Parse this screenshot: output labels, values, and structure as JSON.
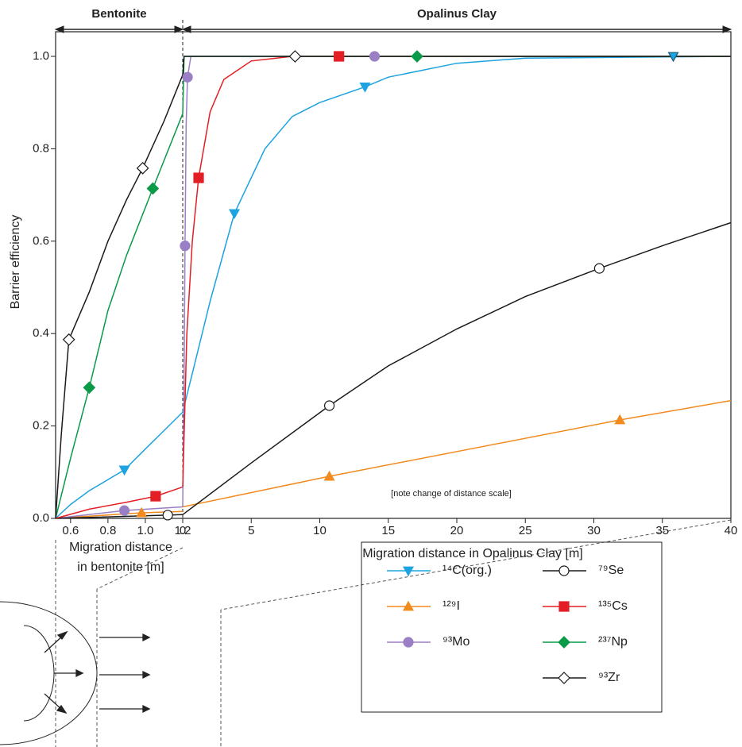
{
  "chart_data": [
    {
      "type": "line",
      "title": "Bentonite",
      "ylabel": "Barrier efficiency",
      "xlabel": [
        "Migration distance",
        "in bentonite [m]"
      ],
      "xlim": [
        0.52,
        1.2
      ],
      "xticks": [
        0.6,
        0.8,
        {
          "value": 1,
          "label": "1.0"
        },
        1.2
      ],
      "ylim": [
        0,
        1
      ],
      "yticks": [
        {
          "value": 0,
          "label": "0.0"
        },
        0.2,
        0.4,
        0.6,
        0.8,
        {
          "value": 1,
          "label": "1.0"
        }
      ],
      "series": [
        {
          "color": "#1ca3e0",
          "marker": "triangle-down",
          "marker_fill": "#1ca3e0",
          "x": [
            0.52,
            0.6,
            0.7,
            0.888,
            1.0,
            1.1,
            1.2
          ],
          "values": [
            0,
            0.03,
            0.06,
            0.105,
            0.15,
            0.19,
            0.23
          ],
          "markers": {
            "x": [
              0.888
            ],
            "values": [
              0.105
            ]
          }
        },
        {
          "color": "#f28a1e",
          "marker": "triangle-up",
          "marker_fill": "#f28a1e",
          "x": [
            0.52,
            0.98,
            1.2
          ],
          "values": [
            0,
            0.012,
            0.015
          ],
          "markers": {
            "x": [
              0.98
            ],
            "values": [
              0.012
            ]
          }
        },
        {
          "color": "#9b7fc4",
          "marker": "circle",
          "marker_fill": "#9b7fc4",
          "x": [
            0.52,
            0.888,
            1.2
          ],
          "values": [
            0,
            0.017,
            0.025
          ],
          "markers": {
            "x": [
              0.888
            ],
            "values": [
              0.017
            ]
          }
        },
        {
          "color": "#1a1a1a",
          "marker": "circle",
          "marker_fill": "#ffffff",
          "x": [
            0.52,
            1.12,
            1.2
          ],
          "values": [
            0,
            0.007,
            0.008
          ],
          "markers": {
            "x": [
              1.12
            ],
            "values": [
              0.007
            ]
          }
        },
        {
          "color": "#e31e24",
          "marker": "square",
          "marker_fill": "#e31e24",
          "x": [
            0.52,
            0.7,
            0.9,
            1.055,
            1.2
          ],
          "values": [
            0,
            0.02,
            0.035,
            0.048,
            0.068
          ],
          "markers": {
            "x": [
              1.055
            ],
            "values": [
              0.048
            ]
          }
        },
        {
          "color": "#0a9a48",
          "marker": "diamond",
          "marker_fill": "#0a9a48",
          "x": [
            0.52,
            0.6,
            0.7,
            0.8,
            0.9,
            1.04,
            1.2
          ],
          "values": [
            0,
            0.13,
            0.283,
            0.45,
            0.57,
            0.714,
            0.876
          ],
          "markers": {
            "x": [
              0.7,
              1.04
            ],
            "values": [
              0.283,
              0.714
            ]
          }
        },
        {
          "color": "#1a1a1a",
          "marker": "diamond",
          "marker_fill": "#ffffff",
          "x": [
            0.52,
            0.55,
            0.591,
            0.7,
            0.8,
            0.9,
            0.986,
            1.1,
            1.2
          ],
          "values": [
            0,
            0.18,
            0.387,
            0.49,
            0.6,
            0.69,
            0.758,
            0.86,
            0.96
          ],
          "markers": {
            "x": [
              0.591,
              0.986
            ],
            "values": [
              0.387,
              0.758
            ]
          }
        }
      ]
    },
    {
      "type": "line",
      "title": "Opalinus Clay",
      "xlabel": "Migration distance in Opalinus Clay [m]",
      "annotation": "[note change of distance scale]",
      "xlim": [
        0,
        40
      ],
      "xticks": [
        0,
        5,
        10,
        15,
        20,
        25,
        30,
        35,
        40
      ],
      "ylim": [
        0,
        1
      ],
      "series": [
        {
          "name": "¹⁴C(org.)",
          "color": "#1ca3e0",
          "marker": "triangle-down",
          "marker_fill": "#1ca3e0",
          "x": [
            0,
            1,
            2,
            3.77,
            6,
            8,
            10,
            13.3,
            15,
            20,
            25,
            40
          ],
          "values": [
            0.23,
            0.35,
            0.47,
            0.66,
            0.8,
            0.87,
            0.9,
            0.934,
            0.955,
            0.985,
            0.996,
            1.0
          ],
          "markers": {
            "x": [
              3.77,
              13.3,
              35.8
            ],
            "values": [
              0.66,
              0.934,
              1.0
            ]
          }
        },
        {
          "name": "¹²⁹I",
          "color": "#f28a1e",
          "marker": "triangle-up",
          "marker_fill": "#f28a1e",
          "x": [
            0,
            10.7,
            31.9,
            40
          ],
          "values": [
            0.025,
            0.091,
            0.213,
            0.255
          ],
          "markers": {
            "x": [
              10.7,
              31.9
            ],
            "values": [
              0.091,
              0.213
            ]
          }
        },
        {
          "name": "⁹³Mo",
          "color": "#9b7fc4",
          "marker": "circle",
          "marker_fill": "#9b7fc4",
          "x": [
            0,
            0.1,
            0.17,
            0.25,
            0.35,
            0.6,
            40
          ],
          "values": [
            0.025,
            0.3,
            0.59,
            0.85,
            0.955,
            1.0,
            1.0
          ],
          "markers": {
            "x": [
              0.17,
              0.35,
              14
            ],
            "values": [
              0.59,
              0.955,
              1.0
            ]
          }
        },
        {
          "name": "⁷⁹Se",
          "color": "#1a1a1a",
          "marker": "circle",
          "marker_fill": "#ffffff",
          "x": [
            0,
            5,
            10.7,
            15,
            20,
            25,
            30.4,
            35,
            40
          ],
          "values": [
            0.008,
            0.12,
            0.244,
            0.33,
            0.41,
            0.48,
            0.541,
            0.59,
            0.64
          ],
          "markers": {
            "x": [
              10.7,
              30.4
            ],
            "values": [
              0.244,
              0.541
            ]
          }
        },
        {
          "name": "¹³⁵Cs",
          "color": "#e31e24",
          "marker": "square",
          "marker_fill": "#e31e24",
          "x": [
            0,
            0.3,
            0.7,
            1.16,
            2,
            3,
            5,
            8,
            40
          ],
          "values": [
            0.068,
            0.4,
            0.6,
            0.737,
            0.88,
            0.95,
            0.99,
            1.0,
            1.0
          ],
          "markers": {
            "x": [
              1.16,
              11.4
            ],
            "values": [
              0.737,
              1.0
            ]
          }
        },
        {
          "name": "²³⁷Np",
          "color": "#0a9a48",
          "marker": "diamond",
          "marker_fill": "#0a9a48",
          "x": [
            0,
            0.1,
            40
          ],
          "values": [
            0.876,
            1.0,
            1.0
          ],
          "markers": {
            "x": [
              17.1
            ],
            "values": [
              1.0
            ]
          }
        },
        {
          "name": "⁹³Zr",
          "color": "#1a1a1a",
          "marker": "diamond",
          "marker_fill": "#ffffff",
          "x": [
            0,
            0.1,
            40
          ],
          "values": [
            0.96,
            1.0,
            1.0
          ],
          "markers": {
            "x": [
              8.2
            ],
            "values": [
              1.0
            ]
          }
        }
      ]
    }
  ]
}
